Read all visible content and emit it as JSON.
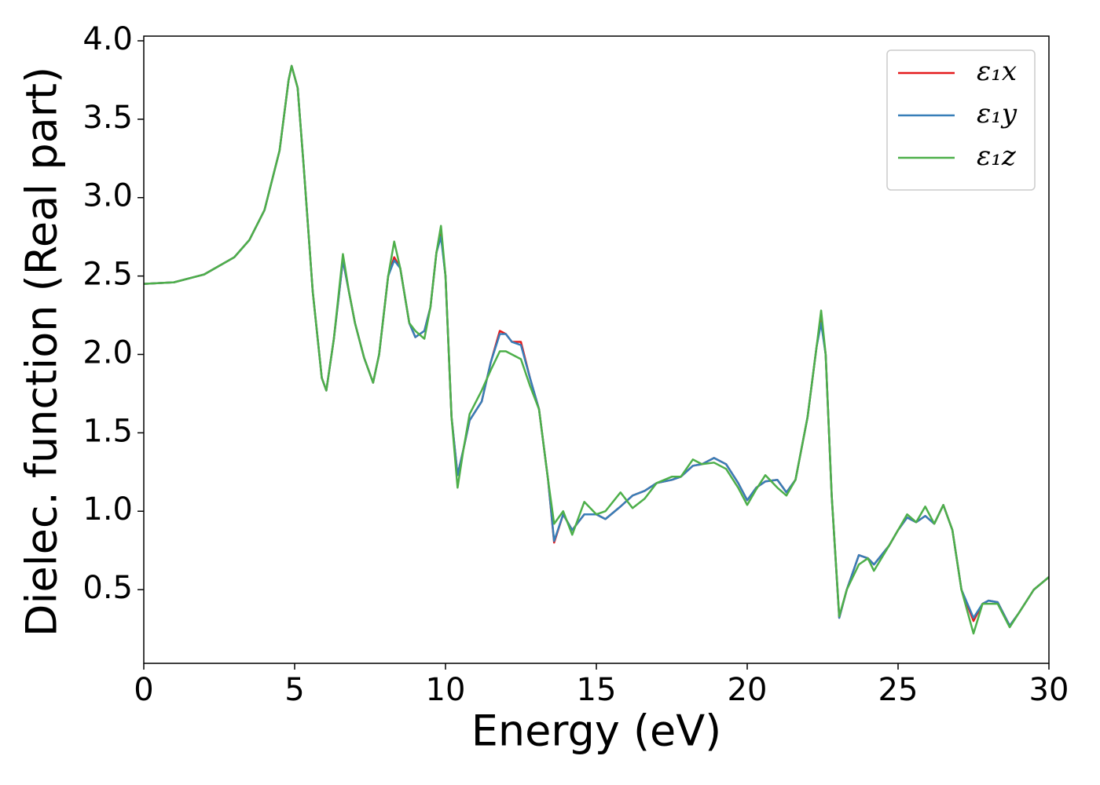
{
  "chart_data": {
    "type": "line",
    "xlabel": "Energy (eV)",
    "ylabel": "Dielec. function (Real part)",
    "xlim": [
      0,
      30
    ],
    "ylim": [
      0.03,
      4.03
    ],
    "xticks": [
      0,
      5,
      10,
      15,
      20,
      25,
      30
    ],
    "yticks": [
      0.5,
      {
        "value": 1,
        "label": "1.0"
      },
      1.5,
      {
        "value": 2,
        "label": "2.0"
      },
      2.5,
      {
        "value": 3,
        "label": "3.0"
      },
      3.5,
      {
        "value": 4,
        "label": "4.0"
      }
    ],
    "legend": "upper right",
    "x": [
      0,
      1,
      2,
      3,
      3.5,
      4,
      4.5,
      4.8,
      4.9,
      5.1,
      5.3,
      5.6,
      5.9,
      6.05,
      6.3,
      6.6,
      6.8,
      7.0,
      7.3,
      7.6,
      7.8,
      8.1,
      8.3,
      8.5,
      8.8,
      9.0,
      9.3,
      9.5,
      9.7,
      9.85,
      10.0,
      10.2,
      10.4,
      10.6,
      10.8,
      11.2,
      11.5,
      11.8,
      12.0,
      12.2,
      12.5,
      12.8,
      13.1,
      13.4,
      13.6,
      13.9,
      14.2,
      14.6,
      15.0,
      15.3,
      15.8,
      16.2,
      16.6,
      17.0,
      17.5,
      17.8,
      18.2,
      18.5,
      18.9,
      19.3,
      19.7,
      20.0,
      20.3,
      20.6,
      21.0,
      21.3,
      21.6,
      22.0,
      22.3,
      22.45,
      22.6,
      22.8,
      23.05,
      23.3,
      23.7,
      24.0,
      24.2,
      24.7,
      25.0,
      25.3,
      25.6,
      25.9,
      26.2,
      26.5,
      26.8,
      27.1,
      27.5,
      27.8,
      28.0,
      28.3,
      28.7,
      29.0,
      29.5,
      30
    ],
    "series": [
      {
        "name": "ε₁x",
        "color": "#e41a1c",
        "values": [
          2.45,
          2.46,
          2.51,
          2.62,
          2.73,
          2.92,
          3.3,
          3.75,
          3.84,
          3.7,
          3.2,
          2.4,
          1.85,
          1.77,
          2.1,
          2.6,
          2.4,
          2.2,
          1.98,
          1.82,
          2.0,
          2.5,
          2.62,
          2.55,
          2.2,
          2.11,
          2.15,
          2.3,
          2.65,
          2.77,
          2.5,
          1.6,
          1.23,
          1.4,
          1.58,
          1.7,
          1.95,
          2.15,
          2.13,
          2.08,
          2.08,
          1.85,
          1.65,
          1.2,
          0.8,
          0.98,
          0.88,
          0.98,
          0.98,
          0.95,
          1.03,
          1.1,
          1.13,
          1.18,
          1.2,
          1.22,
          1.29,
          1.3,
          1.34,
          1.3,
          1.18,
          1.07,
          1.15,
          1.19,
          1.2,
          1.12,
          1.2,
          1.6,
          2.05,
          2.22,
          2.0,
          1.1,
          0.32,
          0.5,
          0.72,
          0.7,
          0.66,
          0.78,
          0.88,
          0.96,
          0.93,
          0.97,
          0.92,
          1.04,
          0.88,
          0.5,
          0.3,
          0.41,
          0.43,
          0.42,
          0.27,
          0.35,
          0.5,
          0.58
        ]
      },
      {
        "name": "ε₁y",
        "color": "#377eb8",
        "values": [
          2.45,
          2.46,
          2.51,
          2.62,
          2.73,
          2.92,
          3.3,
          3.75,
          3.84,
          3.7,
          3.2,
          2.4,
          1.85,
          1.77,
          2.1,
          2.6,
          2.4,
          2.2,
          1.98,
          1.82,
          2.0,
          2.5,
          2.6,
          2.55,
          2.2,
          2.11,
          2.15,
          2.3,
          2.65,
          2.75,
          2.5,
          1.6,
          1.23,
          1.4,
          1.58,
          1.7,
          1.95,
          2.13,
          2.13,
          2.08,
          2.06,
          1.85,
          1.65,
          1.2,
          0.81,
          0.98,
          0.88,
          0.98,
          0.98,
          0.95,
          1.03,
          1.1,
          1.13,
          1.18,
          1.2,
          1.22,
          1.29,
          1.3,
          1.34,
          1.3,
          1.18,
          1.07,
          1.15,
          1.19,
          1.2,
          1.12,
          1.2,
          1.6,
          2.05,
          2.2,
          2.0,
          1.1,
          0.32,
          0.5,
          0.72,
          0.7,
          0.66,
          0.78,
          0.88,
          0.96,
          0.93,
          0.97,
          0.92,
          1.04,
          0.88,
          0.5,
          0.32,
          0.41,
          0.43,
          0.42,
          0.27,
          0.35,
          0.5,
          0.58
        ]
      },
      {
        "name": "ε₁z",
        "color": "#4daf4a",
        "values": [
          2.45,
          2.46,
          2.51,
          2.62,
          2.73,
          2.92,
          3.3,
          3.75,
          3.84,
          3.7,
          3.2,
          2.4,
          1.85,
          1.77,
          2.1,
          2.64,
          2.4,
          2.2,
          1.98,
          1.82,
          2.0,
          2.5,
          2.72,
          2.55,
          2.2,
          2.15,
          2.1,
          2.3,
          2.65,
          2.82,
          2.5,
          1.6,
          1.15,
          1.4,
          1.62,
          1.77,
          1.9,
          2.02,
          2.02,
          2.0,
          1.97,
          1.8,
          1.65,
          1.2,
          0.92,
          1.0,
          0.85,
          1.06,
          0.98,
          1.0,
          1.12,
          1.02,
          1.08,
          1.18,
          1.22,
          1.22,
          1.33,
          1.3,
          1.31,
          1.27,
          1.15,
          1.04,
          1.14,
          1.23,
          1.15,
          1.1,
          1.2,
          1.6,
          2.05,
          2.28,
          2.0,
          1.1,
          0.33,
          0.5,
          0.66,
          0.7,
          0.62,
          0.78,
          0.88,
          0.98,
          0.93,
          1.03,
          0.92,
          1.04,
          0.88,
          0.5,
          0.22,
          0.41,
          0.41,
          0.41,
          0.26,
          0.35,
          0.5,
          0.58
        ]
      }
    ]
  }
}
